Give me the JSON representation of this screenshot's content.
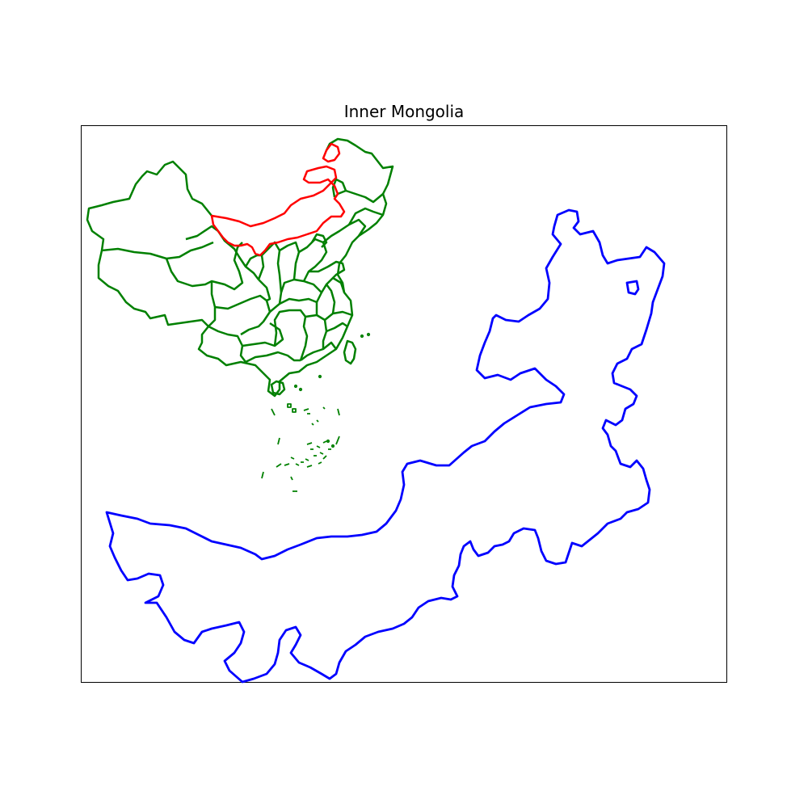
{
  "title": "Inner Mongolia",
  "colors": {
    "inset_provinces": "#008000",
    "inset_highlight": "#ff0000",
    "main_outline": "#0000ff",
    "frame": "#000000",
    "background": "#ffffff"
  },
  "layers": {
    "inset": "china-provinces-inset",
    "highlight": "inner-mongolia-highlight",
    "main": "inner-mongolia-outline"
  }
}
